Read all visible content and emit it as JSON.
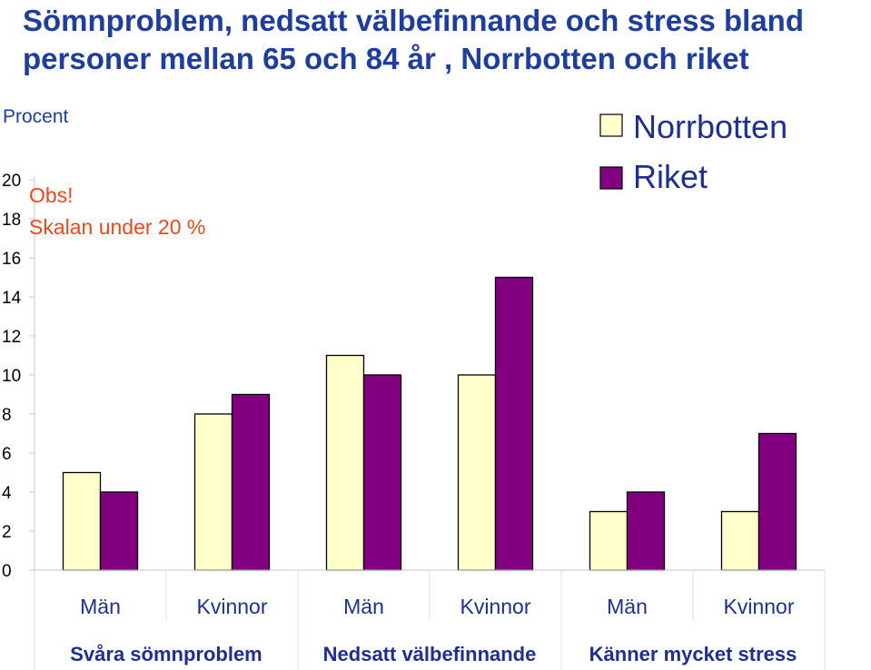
{
  "chart_data": {
    "type": "bar",
    "title_lines": [
      "Sömnproblem, nedsatt välbefinnande och stress bland",
      "personer mellan 65 och 84 år , Norrbotten och riket"
    ],
    "ylabel": "Procent",
    "ylim": [
      0,
      20
    ],
    "yticks": [
      0,
      2,
      4,
      6,
      8,
      10,
      12,
      14,
      16,
      18,
      20
    ],
    "categories": [
      "Män",
      "Kvinnor",
      "Män",
      "Kvinnor",
      "Män",
      "Kvinnor"
    ],
    "groups": [
      "Svåra sömnproblem",
      "Nedsatt välbefinnande",
      "Känner mycket stress"
    ],
    "series": [
      {
        "name": "Norrbotten",
        "color": "#ffffcc",
        "values": [
          5,
          8,
          11,
          10,
          3,
          3
        ]
      },
      {
        "name": "Riket",
        "color": "#800080",
        "values": [
          4,
          9,
          10,
          15,
          4,
          7
        ]
      }
    ],
    "annotation_lines": [
      "Obs!",
      "Skalan under 20 %"
    ],
    "legend_position": "top-right"
  }
}
